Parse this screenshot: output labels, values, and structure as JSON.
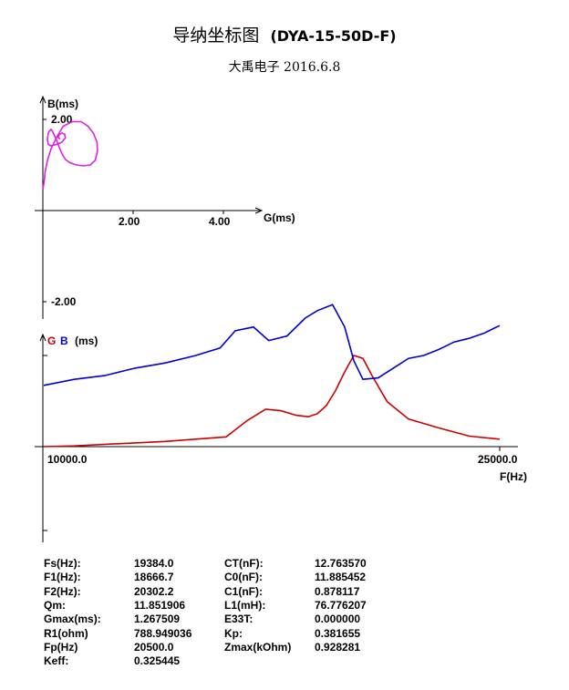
{
  "header": {
    "title": "导纳坐标图",
    "model": "(DYA-15-50D-F)",
    "subtitle": "大禹电子   2016.6.8"
  },
  "colors": {
    "admittance_curve": "#e020e0",
    "G_series": "#cc0000",
    "B_series": "#0000cc",
    "axis": "#000000"
  },
  "chart_data": [
    {
      "type": "line",
      "xlabel": "G(ms)",
      "ylabel": "B(ms)",
      "x_ticks": [
        "2.00",
        "4.00"
      ],
      "y_ticks": [
        "2.00",
        "-2.00"
      ],
      "xlim": [
        0,
        4.2
      ],
      "ylim": [
        -2.0,
        2.0
      ],
      "series": [
        {
          "x": [
            0.0,
            0.03,
            0.05,
            0.1,
            0.18,
            0.3,
            0.45,
            0.65,
            0.85,
            1.0,
            1.12,
            1.2,
            1.21,
            1.16,
            1.05,
            0.9,
            0.75,
            0.6,
            0.5,
            0.45,
            0.4,
            0.35,
            0.3,
            0.25,
            0.22,
            0.2,
            0.18,
            0.15,
            0.12,
            0.1,
            0.12,
            0.18,
            0.3,
            0.42,
            0.5,
            0.48,
            0.42,
            0.36,
            0.34,
            0.38
          ],
          "y": [
            0.45,
            0.65,
            0.85,
            1.1,
            1.35,
            1.6,
            1.85,
            1.95,
            1.95,
            1.85,
            1.7,
            1.5,
            1.3,
            1.1,
            1.0,
            0.98,
            1.0,
            1.05,
            1.12,
            1.2,
            1.3,
            1.42,
            1.55,
            1.66,
            1.72,
            1.76,
            1.78,
            1.75,
            1.7,
            1.55,
            1.45,
            1.42,
            1.45,
            1.5,
            1.6,
            1.68,
            1.7,
            1.66,
            1.6,
            1.57
          ]
        }
      ]
    },
    {
      "type": "line",
      "legend": [
        "G",
        "B"
      ],
      "ylabel_suffix": "(ms)",
      "xlabel": "F(Hz)",
      "x_ticks": [
        "10000.0",
        "25000.0"
      ],
      "xlim": [
        10000,
        25000
      ],
      "series": [
        {
          "name": "G",
          "x": [
            10000,
            11000,
            12000,
            13000,
            14000,
            15000,
            16000,
            16700,
            17300,
            17800,
            18300,
            18700,
            19000,
            19300,
            19600,
            19900,
            20200,
            20500,
            20800,
            21300,
            22000,
            23000,
            24000,
            25000
          ],
          "y": [
            0.0,
            0.01,
            0.03,
            0.05,
            0.07,
            0.1,
            0.13,
            0.35,
            0.5,
            0.48,
            0.42,
            0.4,
            0.44,
            0.55,
            0.75,
            1.0,
            1.22,
            1.18,
            0.95,
            0.6,
            0.37,
            0.25,
            0.14,
            0.1
          ]
        },
        {
          "name": "B",
          "x": [
            10000,
            11000,
            12000,
            13000,
            14000,
            15000,
            15800,
            16300,
            16900,
            17400,
            18000,
            18600,
            19000,
            19500,
            19900,
            20200,
            20500,
            21000,
            21500,
            22000,
            22500,
            23000,
            23500,
            24000,
            24500,
            24800,
            25000
          ],
          "y": [
            0.82,
            0.9,
            0.95,
            1.05,
            1.12,
            1.22,
            1.32,
            1.55,
            1.6,
            1.42,
            1.48,
            1.72,
            1.82,
            1.9,
            1.6,
            1.15,
            0.9,
            0.92,
            1.05,
            1.18,
            1.22,
            1.3,
            1.4,
            1.45,
            1.52,
            1.58,
            1.62
          ]
        }
      ]
    }
  ],
  "params": {
    "left": [
      {
        "label": "Fs(Hz):",
        "value": "19384.0"
      },
      {
        "label": "F1(Hz):",
        "value": "18666.7"
      },
      {
        "label": "F2(Hz):",
        "value": "20302.2"
      },
      {
        "label": "Qm:",
        "value": "11.851906"
      },
      {
        "label": "Gmax(ms):",
        "value": "1.267509"
      },
      {
        "label": "R1(ohm)",
        "value": "788.949036"
      },
      {
        "label": "Fp(Hz)",
        "value": "20500.0"
      },
      {
        "label": "Keff:",
        "value": "0.325445"
      }
    ],
    "right": [
      {
        "label": "CT(nF):",
        "value": "12.763570"
      },
      {
        "label": "C0(nF):",
        "value": "11.885452"
      },
      {
        "label": "C1(nF):",
        "value": "0.878117"
      },
      {
        "label": "L1(mH):",
        "value": "76.776207"
      },
      {
        "label": "E33T:",
        "value": "0.000000"
      },
      {
        "label": "Kp:",
        "value": "0.381655"
      },
      {
        "label": "Zmax(kOhm)",
        "value": "0.928281"
      }
    ]
  }
}
